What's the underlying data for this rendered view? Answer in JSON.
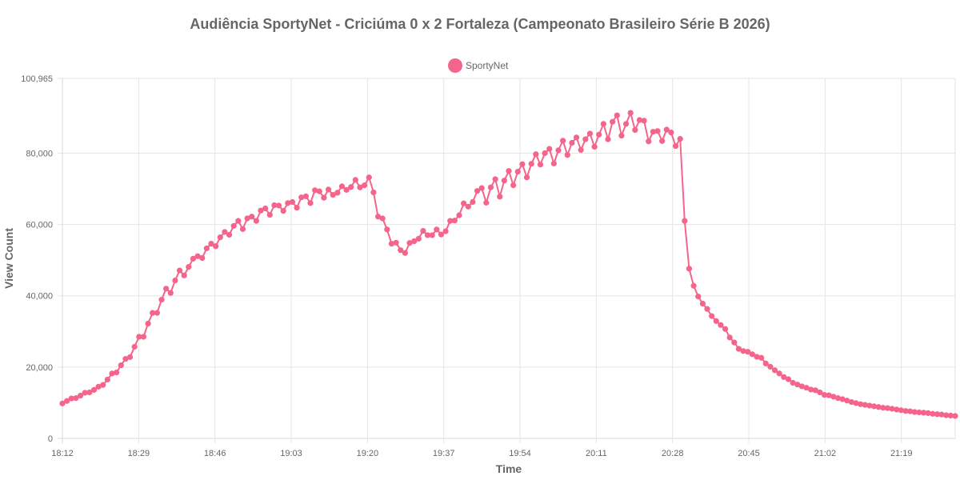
{
  "chart_data": {
    "type": "line",
    "title": "Audiência SportyNet - Criciúma 0 x 2 Fortaleza (Campeonato Brasileiro Série B 2026)",
    "xlabel": "Time",
    "ylabel": "View Count",
    "legend_position": "top-center",
    "grid": true,
    "ylim": [
      0,
      100965
    ],
    "y_ticks": [
      "0",
      "20,000",
      "40,000",
      "60,000",
      "80,000",
      "100,965"
    ],
    "x_ticks": [
      "18:12",
      "18:29",
      "18:46",
      "19:03",
      "19:20",
      "19:37",
      "19:54",
      "20:11",
      "20:28",
      "20:45",
      "21:02",
      "21:19"
    ],
    "x_range_minutes": [
      0,
      199
    ],
    "series": [
      {
        "name": "SportyNet",
        "color": "#f5648a",
        "values": [
          9800,
          10500,
          11200,
          11300,
          12000,
          12800,
          12900,
          13600,
          14500,
          15000,
          16500,
          18200,
          18500,
          20500,
          22300,
          22800,
          25700,
          28500,
          28500,
          32200,
          35200,
          35200,
          38900,
          42000,
          40800,
          44300,
          47100,
          45700,
          48100,
          50400,
          51100,
          50600,
          53300,
          54600,
          53900,
          56400,
          57900,
          57100,
          59600,
          61000,
          58700,
          61700,
          62200,
          61000,
          63900,
          64500,
          62700,
          65400,
          65300,
          63800,
          66000,
          66300,
          64700,
          67600,
          67900,
          66000,
          69600,
          69300,
          67500,
          69800,
          68300,
          68900,
          70700,
          69700,
          70500,
          72500,
          70400,
          71000,
          73200,
          69000,
          62200,
          61700,
          58600,
          54600,
          54900,
          52800,
          52000,
          54800,
          55300,
          56000,
          58200,
          57000,
          57000,
          58600,
          57200,
          58100,
          61000,
          61100,
          62600,
          65900,
          65000,
          66300,
          69400,
          70200,
          66100,
          70400,
          72700,
          67800,
          72300,
          75000,
          71000,
          74800,
          76900,
          73200,
          77000,
          79700,
          76800,
          80000,
          81200,
          77100,
          80800,
          83500,
          79500,
          82900,
          84400,
          80900,
          83900,
          85500,
          81800,
          85200,
          88200,
          83900,
          88800,
          90600,
          84900,
          88200,
          91300,
          86500,
          89300,
          89100,
          83300,
          86000,
          86200,
          83400,
          86600,
          85800,
          82000,
          84000,
          61000,
          47600,
          42800,
          39800,
          37800,
          36300,
          34300,
          32900,
          31800,
          30700,
          28300,
          26900,
          25100,
          24500,
          24300,
          23600,
          22900,
          22600,
          21000,
          20100,
          19100,
          18200,
          17200,
          16600,
          15600,
          15100,
          14600,
          14200,
          13700,
          13500,
          12900,
          12200,
          12100,
          11700,
          11300,
          11000,
          10600,
          10200,
          9900,
          9600,
          9400,
          9200,
          9000,
          8800,
          8600,
          8500,
          8300,
          8100,
          7900,
          7700,
          7600,
          7400,
          7300,
          7200,
          7100,
          6900,
          6800,
          6700,
          6500,
          6400,
          6300
        ]
      }
    ]
  }
}
